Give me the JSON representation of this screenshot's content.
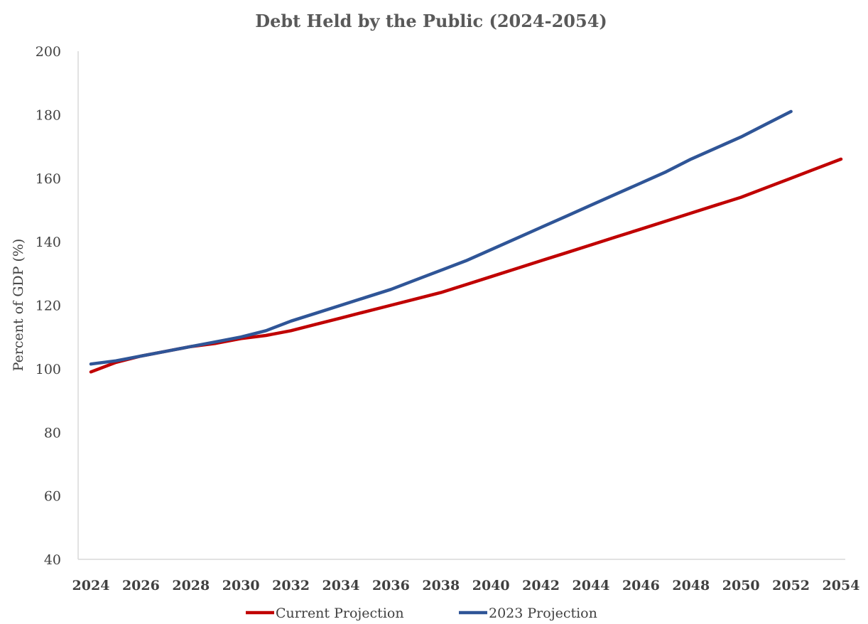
{
  "chart_data": {
    "type": "line",
    "title": "Debt Held by the Public (2024-2054)",
    "xlabel": "",
    "ylabel": "Percent of GDP (%)",
    "x_ticks": [
      "2024",
      "2026",
      "2028",
      "2030",
      "2032",
      "2034",
      "2036",
      "2038",
      "2040",
      "2042",
      "2044",
      "2046",
      "2048",
      "2050",
      "2052",
      "2054"
    ],
    "y_ticks": [
      "40",
      "60",
      "80",
      "100",
      "120",
      "140",
      "160",
      "180",
      "200"
    ],
    "xlim": [
      2024,
      2054
    ],
    "ylim": [
      40,
      200
    ],
    "grid": false,
    "legend_position": "bottom",
    "series": [
      {
        "name": "Current Projection",
        "color": "#C00000",
        "x": [
          2024,
          2025,
          2026,
          2027,
          2028,
          2029,
          2030,
          2031,
          2032,
          2033,
          2034,
          2035,
          2036,
          2037,
          2038,
          2039,
          2040,
          2041,
          2042,
          2043,
          2044,
          2045,
          2046,
          2047,
          2048,
          2049,
          2050,
          2051,
          2052,
          2053,
          2054
        ],
        "values": [
          99,
          102,
          104,
          105.5,
          107,
          108,
          109.5,
          110.5,
          112,
          114,
          116,
          118,
          120,
          122,
          124,
          126.5,
          129,
          131.5,
          134,
          136.5,
          139,
          141.5,
          144,
          146.5,
          149,
          151.5,
          154,
          157,
          160,
          163,
          166
        ]
      },
      {
        "name": "2023 Projection",
        "color": "#2F5597",
        "x": [
          2024,
          2025,
          2026,
          2027,
          2028,
          2029,
          2030,
          2031,
          2032,
          2033,
          2034,
          2035,
          2036,
          2037,
          2038,
          2039,
          2040,
          2041,
          2042,
          2043,
          2044,
          2045,
          2046,
          2047,
          2048,
          2049,
          2050,
          2051,
          2052
        ],
        "values": [
          101.5,
          102.5,
          104,
          105.5,
          107,
          108.5,
          110,
          112,
          115,
          117.5,
          120,
          122.5,
          125,
          128,
          131,
          134,
          137.5,
          141,
          144.5,
          148,
          151.5,
          155,
          158.5,
          162,
          166,
          169.5,
          173,
          177,
          181
        ]
      }
    ]
  }
}
